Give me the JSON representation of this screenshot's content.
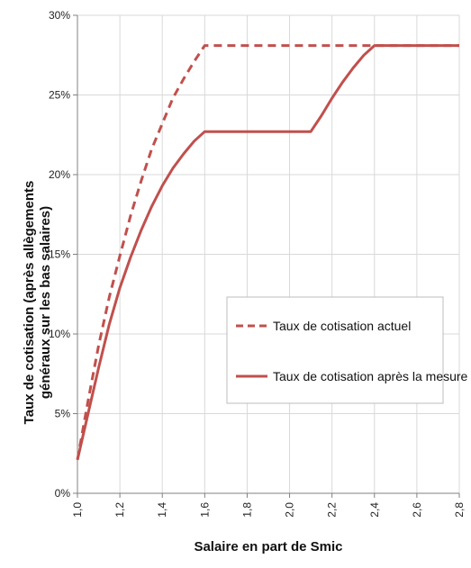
{
  "chart_data": {
    "type": "line",
    "xlabel": "Salaire en part de Smic",
    "ylabel_line1": "Taux de cotisation (après allègements",
    "ylabel_line2": "généraux sur les bas salaires)",
    "x_ticks": [
      "1,0",
      "1,2",
      "1,4",
      "1,6",
      "1,8",
      "2,0",
      "2,2",
      "2,4",
      "2,6",
      "2,8"
    ],
    "y_ticks": [
      "0%",
      "5%",
      "10%",
      "15%",
      "20%",
      "25%",
      "30%"
    ],
    "xlim": [
      1.0,
      2.8
    ],
    "ylim": [
      0,
      30
    ],
    "grid": true,
    "legend_placement": "center-right",
    "series": [
      {
        "name": "Taux de cotisation actuel",
        "color": "#c0504d",
        "dashed": true,
        "x": [
          1.0,
          1.05,
          1.1,
          1.15,
          1.2,
          1.25,
          1.3,
          1.35,
          1.4,
          1.45,
          1.5,
          1.55,
          1.6,
          1.8,
          2.0,
          2.2,
          2.4,
          2.6,
          2.8
        ],
        "y": [
          2.1,
          5.8,
          9.3,
          12.3,
          14.9,
          17.4,
          19.6,
          21.6,
          23.2,
          24.8,
          26.0,
          27.1,
          28.1,
          28.1,
          28.1,
          28.1,
          28.1,
          28.1,
          28.1
        ]
      },
      {
        "name": "Taux de cotisation après la mesure",
        "color": "#c0504d",
        "dashed": false,
        "x": [
          1.0,
          1.05,
          1.1,
          1.15,
          1.2,
          1.25,
          1.3,
          1.35,
          1.4,
          1.45,
          1.5,
          1.55,
          1.6,
          1.8,
          2.0,
          2.1,
          2.15,
          2.2,
          2.25,
          2.3,
          2.35,
          2.4,
          2.6,
          2.8
        ],
        "y": [
          2.1,
          5.0,
          7.9,
          10.6,
          12.9,
          14.8,
          16.5,
          18.0,
          19.3,
          20.4,
          21.3,
          22.1,
          22.7,
          22.7,
          22.7,
          22.7,
          23.7,
          24.8,
          25.8,
          26.7,
          27.5,
          28.1,
          28.1,
          28.1
        ]
      }
    ]
  }
}
